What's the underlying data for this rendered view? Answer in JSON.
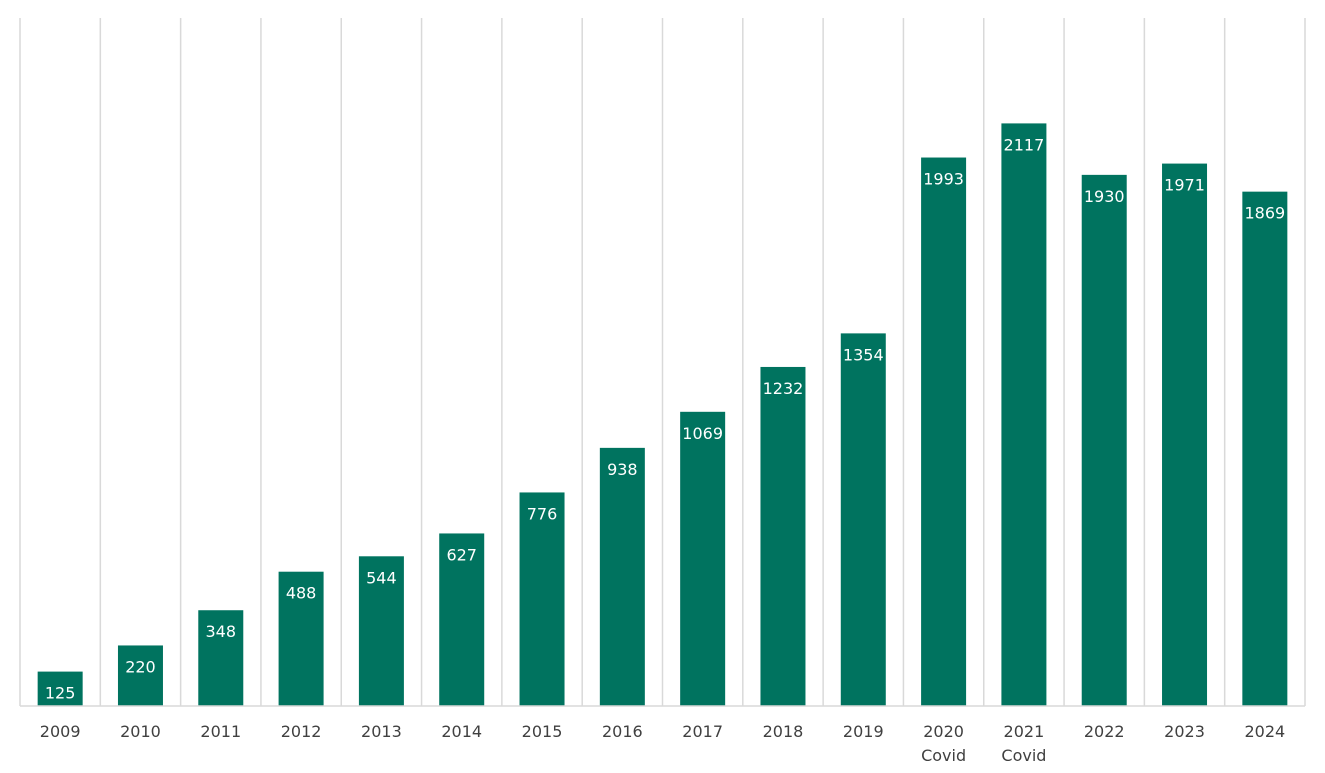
{
  "chart_data": {
    "type": "bar",
    "title": "",
    "xlabel": "",
    "ylabel": "",
    "categories": [
      [
        "2009"
      ],
      [
        "2010"
      ],
      [
        "2011"
      ],
      [
        "2012"
      ],
      [
        "2013"
      ],
      [
        "2014"
      ],
      [
        "2015"
      ],
      [
        "2016"
      ],
      [
        "2017"
      ],
      [
        "2018"
      ],
      [
        "2019"
      ],
      [
        "2020",
        "Covid"
      ],
      [
        "2021",
        "Covid"
      ],
      [
        "2022"
      ],
      [
        "2023"
      ],
      [
        "2024"
      ]
    ],
    "values": [
      125,
      220,
      348,
      488,
      544,
      627,
      776,
      938,
      1069,
      1232,
      1354,
      1993,
      2117,
      1930,
      1971,
      1869
    ],
    "ylim": [
      0,
      2500
    ],
    "grid": "vertical",
    "legend": "none",
    "bar_color": "#00735F",
    "label_color": "#FFFFFF",
    "grid_color": "#D9D9D9"
  }
}
